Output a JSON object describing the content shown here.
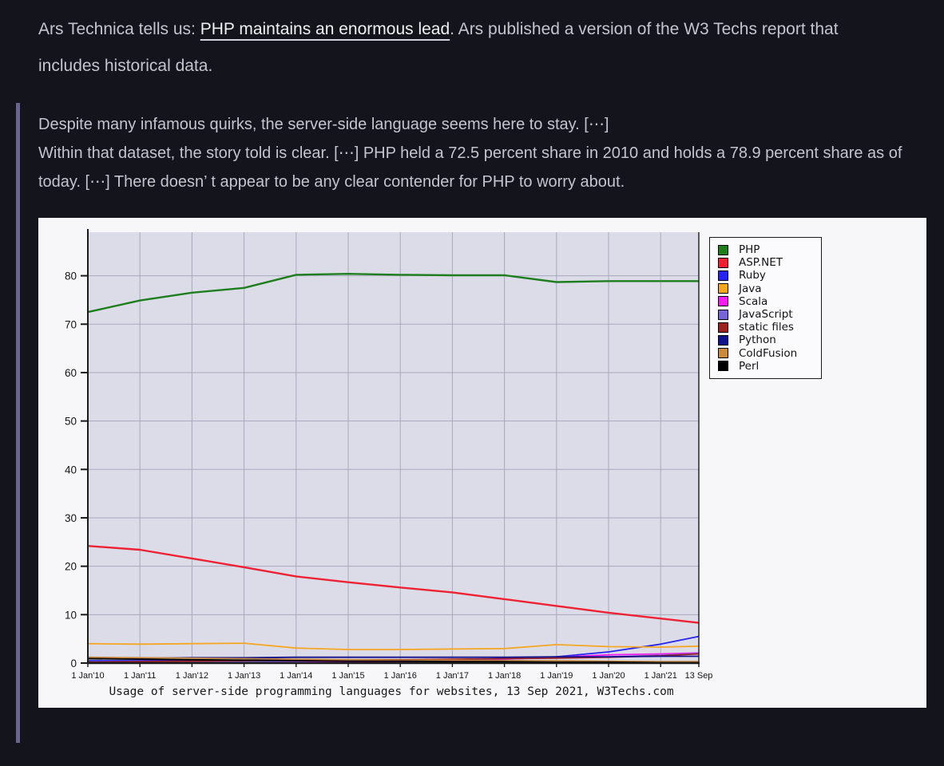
{
  "intro": {
    "prefix": "Ars Technica tells us: ",
    "link_text": "PHP maintains an enormous lead",
    "suffix": ". Ars published a version of the W3 Techs report that includes historical data."
  },
  "quote": {
    "p1": "Despite many infamous quirks, the server-side language seems here to stay. [⋯]",
    "p2": "Within that dataset, the story told is clear. [⋯] PHP held a 72.5 percent share in 2010 and holds a 78.9 percent share as of today. [⋯] There doesn’ t appear to be any clear contender for PHP to worry about."
  },
  "colors": {
    "page_bg": "#14141d",
    "text": "#c4c4ce",
    "link": "#eef0f2",
    "quote_border": "#6a6490",
    "chart_bg": "#f7f7f9",
    "plot_bg": "#dcdce9",
    "grid": "#a8a8bc",
    "axis": "#1a1a1a"
  },
  "chart_data": {
    "type": "line",
    "title": "Usage of server-side programming languages for websites, 13 Sep 2021, W3Techs.com",
    "xlabel": "",
    "ylabel": "",
    "grid": true,
    "legend_position": "outside-right",
    "ylim": [
      0,
      89
    ],
    "y_ticks": [
      0,
      10,
      20,
      30,
      40,
      50,
      60,
      70,
      80
    ],
    "x_labels": [
      "1 Jan'10",
      "1 Jan'11",
      "1 Jan'12",
      "1 Jan'13",
      "1 Jan'14",
      "1 Jan'15",
      "1 Jan'16",
      "1 Jan'17",
      "1 Jan'18",
      "1 Jan'19",
      "1 Jan'20",
      "1 Jan'21",
      "13 Sep"
    ],
    "series": [
      {
        "name": "PHP",
        "color": "#1e7e1e",
        "values": [
          72.5,
          74.9,
          76.5,
          77.5,
          80.2,
          80.4,
          80.2,
          80.1,
          80.1,
          78.7,
          78.9,
          78.9,
          78.9
        ]
      },
      {
        "name": "ASP.NET",
        "color": "#ee2233",
        "values": [
          24.2,
          23.4,
          21.6,
          19.8,
          17.9,
          16.7,
          15.6,
          14.6,
          13.2,
          11.8,
          10.4,
          9.2,
          8.3
        ]
      },
      {
        "name": "Ruby",
        "color": "#2525ee",
        "values": [
          0.5,
          0.5,
          0.6,
          0.6,
          0.6,
          0.6,
          0.6,
          0.7,
          0.9,
          1.3,
          2.3,
          3.9,
          5.5
        ]
      },
      {
        "name": "Java",
        "color": "#f5a623",
        "values": [
          4.0,
          3.9,
          4.0,
          4.1,
          3.1,
          2.8,
          2.8,
          2.9,
          3.0,
          3.8,
          3.4,
          3.3,
          3.5
        ]
      },
      {
        "name": "Scala",
        "color": "#f01ff0",
        "values": [
          0.1,
          0.1,
          0.1,
          0.1,
          0.2,
          0.2,
          0.3,
          0.5,
          0.8,
          1.2,
          1.7,
          1.9,
          2.1
        ]
      },
      {
        "name": "JavaScript",
        "color": "#7565d6",
        "values": [
          0.1,
          0.1,
          0.2,
          0.3,
          0.4,
          0.5,
          0.6,
          0.7,
          0.9,
          1.1,
          1.3,
          1.6,
          2.0
        ]
      },
      {
        "name": "static files",
        "color": "#9b2020",
        "values": [
          0.2,
          0.3,
          0.4,
          0.5,
          0.6,
          0.7,
          0.7,
          0.8,
          0.9,
          1.0,
          1.2,
          1.5,
          1.9
        ]
      },
      {
        "name": "Python",
        "color": "#12128c",
        "values": [
          1.0,
          1.0,
          1.1,
          1.1,
          1.2,
          1.2,
          1.2,
          1.2,
          1.2,
          1.3,
          1.3,
          1.4,
          1.4
        ]
      },
      {
        "name": "ColdFusion",
        "color": "#c9893f",
        "values": [
          1.2,
          1.1,
          1.0,
          0.9,
          0.8,
          0.7,
          0.6,
          0.6,
          0.5,
          0.5,
          0.4,
          0.3,
          0.3
        ]
      },
      {
        "name": "Perl",
        "color": "#000000",
        "values": [
          0.9,
          0.8,
          0.7,
          0.6,
          0.5,
          0.4,
          0.4,
          0.3,
          0.3,
          0.2,
          0.2,
          0.1,
          0.1
        ]
      }
    ]
  }
}
